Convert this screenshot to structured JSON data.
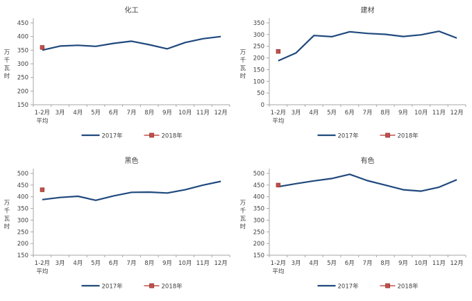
{
  "page": {
    "background": "#ffffff"
  },
  "colors": {
    "line_2017": "#1f497d",
    "marker_2018_fill": "#c0504d",
    "marker_2018_stroke": "#943634",
    "axis": "#a6a6a6",
    "tick_text": "#404040",
    "title_text": "#404040"
  },
  "chart_data": [
    {
      "type": "line",
      "title": "化工",
      "ylabel": "万千瓦时",
      "categories": [
        "1-2月\n平均",
        "3月",
        "4月",
        "5月",
        "6月",
        "7月",
        "8月",
        "9月",
        "10月",
        "11月",
        "12月"
      ],
      "ylim": [
        150,
        450
      ],
      "ytick_step": 50,
      "grid": false,
      "legend_position": "bottom",
      "series": [
        {
          "name": "2017年",
          "style": "line",
          "values": [
            350,
            365,
            368,
            364,
            375,
            383,
            370,
            355,
            378,
            392,
            400
          ]
        },
        {
          "name": "2018年",
          "style": "square-marker",
          "values": [
            360
          ]
        }
      ]
    },
    {
      "type": "line",
      "title": "建材",
      "ylabel": "万千瓦时",
      "categories": [
        "1-2月\n平均",
        "3月",
        "4月",
        "5月",
        "6月",
        "7月",
        "8月",
        "9月",
        "10月",
        "11月",
        "12月"
      ],
      "ylim": [
        0,
        350
      ],
      "ytick_step": 50,
      "grid": false,
      "legend_position": "bottom",
      "series": [
        {
          "name": "2017年",
          "style": "line",
          "values": [
            188,
            222,
            296,
            291,
            312,
            305,
            301,
            292,
            299,
            314,
            285
          ]
        },
        {
          "name": "2018年",
          "style": "square-marker",
          "values": [
            228
          ]
        }
      ]
    },
    {
      "type": "line",
      "title": "黑色",
      "ylabel": "万千瓦时",
      "categories": [
        "1-2月\n平均",
        "3月",
        "4月",
        "5月",
        "6月",
        "7月",
        "8月",
        "9月",
        "10月",
        "11月",
        "12月"
      ],
      "ylim": [
        150,
        500
      ],
      "ytick_step": 50,
      "grid": false,
      "legend_position": "bottom",
      "series": [
        {
          "name": "2017年",
          "style": "line",
          "values": [
            388,
            397,
            402,
            385,
            404,
            419,
            420,
            416,
            430,
            450,
            466
          ]
        },
        {
          "name": "2018年",
          "style": "square-marker",
          "values": [
            430
          ]
        }
      ]
    },
    {
      "type": "line",
      "title": "有色",
      "ylabel": "万千瓦时",
      "categories": [
        "1-2月\n平均",
        "3月",
        "4月",
        "5月",
        "6月",
        "7月",
        "8月",
        "9月",
        "10月",
        "11月",
        "12月"
      ],
      "ylim": [
        150,
        500
      ],
      "ytick_step": 50,
      "grid": false,
      "legend_position": "bottom",
      "series": [
        {
          "name": "2017年",
          "style": "line",
          "values": [
            443,
            456,
            468,
            478,
            496,
            469,
            450,
            430,
            424,
            441,
            473
          ]
        },
        {
          "name": "2018年",
          "style": "square-marker",
          "values": [
            450
          ]
        }
      ]
    }
  ]
}
